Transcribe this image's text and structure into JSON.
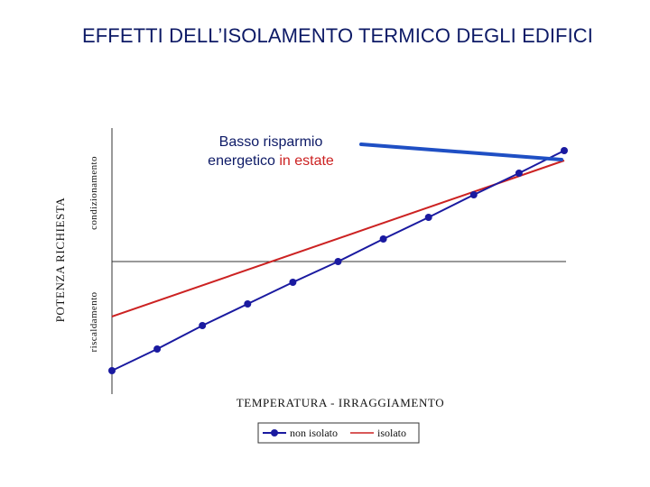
{
  "title": "EFFETTI DELL’ISOLAMENTO TERMICO DEGLI EDIFICI",
  "chart_data": {
    "type": "line",
    "xlabel": "TEMPERATURA - IRRAGGIAMENTO",
    "ylabel": "POTENZA RICHIESTA",
    "ylabel_upper": "condizionamento",
    "ylabel_lower": "riscaldamento",
    "x": [
      0,
      1,
      2,
      3,
      4,
      5,
      6,
      7,
      8,
      9,
      10
    ],
    "x_ticks_shown": false,
    "y_ticks_shown": false,
    "grid": false,
    "zero_line": true,
    "legend_position": "bottom-center",
    "series": [
      {
        "name": "non isolato",
        "color": "#1a1aa0",
        "marker": "circle",
        "values": [
          -121,
          -97,
          -71,
          -47,
          -23,
          0,
          25,
          49,
          74,
          98,
          123
        ]
      },
      {
        "name": "isolato",
        "color": "#cc2222",
        "marker": "none",
        "endpoints_x": [
          0,
          10
        ],
        "endpoints_y": [
          -61,
          112
        ]
      }
    ],
    "annotation": {
      "text_line1": "Basso risparmio",
      "text_line2_prefix": "energetico ",
      "text_line2_highlight": "in estate",
      "text_color": "#0d1a66",
      "highlight_color": "#cc2222",
      "arrow_color": "#1f4fc4"
    }
  }
}
